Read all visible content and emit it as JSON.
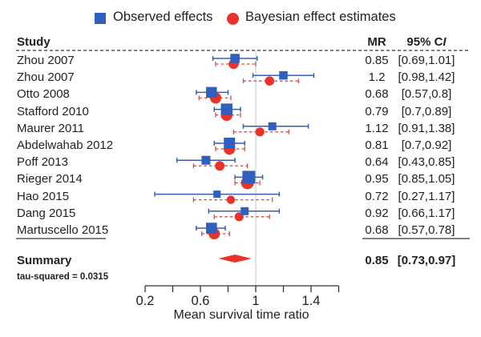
{
  "chart_data": {
    "type": "forest",
    "title": "",
    "xlabel": "Mean survival time ratio",
    "xlim": [
      0.2,
      1.6
    ],
    "x_ticks": [
      0.2,
      0.4,
      0.6,
      0.8,
      1.0,
      1.2,
      1.4,
      1.6
    ],
    "x_tick_labels": [
      {
        "value": 0.2,
        "label": "0.2"
      },
      {
        "value": 0.6,
        "label": "0.6"
      },
      {
        "value": 1.0,
        "label": "1"
      },
      {
        "value": 1.4,
        "label": "1.4"
      }
    ],
    "reference_line": 1.0,
    "legend": {
      "position": "top-center",
      "entries": [
        {
          "name": "Observed effects",
          "marker": "square",
          "color": "#2f5fbf"
        },
        {
          "name": "Bayesian effect estimates",
          "marker": "circle",
          "color": "#e8322a"
        }
      ]
    },
    "columns": {
      "study": "Study",
      "mr": "MR",
      "ci": "95% CI"
    },
    "studies": [
      {
        "study": "Zhou 2007",
        "mr": "0.85",
        "ci": "[0.69,1.01]",
        "observed": {
          "est": 0.85,
          "lo": 0.69,
          "hi": 1.01,
          "weight": 0.55
        },
        "bayes": {
          "est": 0.84,
          "lo": 0.71,
          "hi": 1.0
        }
      },
      {
        "study": "Zhou 2007",
        "mr": "1.2",
        "ci": "[0.98,1.42]",
        "observed": {
          "est": 1.2,
          "lo": 0.98,
          "hi": 1.42,
          "weight": 0.45
        },
        "bayes": {
          "est": 1.1,
          "lo": 0.91,
          "hi": 1.31
        }
      },
      {
        "study": "Otto 2008",
        "mr": "0.68",
        "ci": "[0.57,0.8]",
        "observed": {
          "est": 0.68,
          "lo": 0.57,
          "hi": 0.8,
          "weight": 0.75
        },
        "bayes": {
          "est": 0.71,
          "lo": 0.59,
          "hi": 0.82
        }
      },
      {
        "study": "Stafford 2010",
        "mr": "0.79",
        "ci": "[0.7,0.89]",
        "observed": {
          "est": 0.79,
          "lo": 0.7,
          "hi": 0.89,
          "weight": 0.85
        },
        "bayes": {
          "est": 0.79,
          "lo": 0.71,
          "hi": 0.89
        }
      },
      {
        "study": "Maurer 2011",
        "mr": "1.12",
        "ci": "[0.91,1.38]",
        "observed": {
          "est": 1.12,
          "lo": 0.91,
          "hi": 1.38,
          "weight": 0.4
        },
        "bayes": {
          "est": 1.03,
          "lo": 0.84,
          "hi": 1.24
        }
      },
      {
        "study": "Abdelwahab 2012",
        "mr": "0.81",
        "ci": "[0.7,0.92]",
        "observed": {
          "est": 0.81,
          "lo": 0.7,
          "hi": 0.92,
          "weight": 0.8
        },
        "bayes": {
          "est": 0.81,
          "lo": 0.71,
          "hi": 0.92
        }
      },
      {
        "study": "Poff 2013",
        "mr": "0.64",
        "ci": "[0.43,0.85]",
        "observed": {
          "est": 0.64,
          "lo": 0.43,
          "hi": 0.85,
          "weight": 0.5
        },
        "bayes": {
          "est": 0.74,
          "lo": 0.55,
          "hi": 0.94
        }
      },
      {
        "study": "Rieger 2014",
        "mr": "0.95",
        "ci": "[0.85,1.05]",
        "observed": {
          "est": 0.95,
          "lo": 0.85,
          "hi": 1.05,
          "weight": 1.0
        },
        "bayes": {
          "est": 0.94,
          "lo": 0.85,
          "hi": 1.03
        }
      },
      {
        "study": "Hao 2015",
        "mr": "0.72",
        "ci": "[0.27,1.17]",
        "observed": {
          "est": 0.72,
          "lo": 0.27,
          "hi": 1.17,
          "weight": 0.3
        },
        "bayes": {
          "est": 0.82,
          "lo": 0.55,
          "hi": 1.12
        }
      },
      {
        "study": "Dang 2015",
        "mr": "0.92",
        "ci": "[0.66,1.17]",
        "observed": {
          "est": 0.92,
          "lo": 0.66,
          "hi": 1.17,
          "weight": 0.4
        },
        "bayes": {
          "est": 0.88,
          "lo": 0.7,
          "hi": 1.1
        }
      },
      {
        "study": "Martuscello 2015",
        "mr": "0.68",
        "ci": "[0.57,0.78]",
        "observed": {
          "est": 0.68,
          "lo": 0.57,
          "hi": 0.78,
          "weight": 0.75
        },
        "bayes": {
          "est": 0.7,
          "lo": 0.61,
          "hi": 0.81
        }
      }
    ],
    "summary": {
      "label": "Summary",
      "mr": "0.85",
      "ci": "[0.73,0.97]",
      "est": 0.85,
      "lo": 0.73,
      "hi": 0.97,
      "color": "#e8322a"
    },
    "annotation": "tau-squared = 0.0315"
  }
}
